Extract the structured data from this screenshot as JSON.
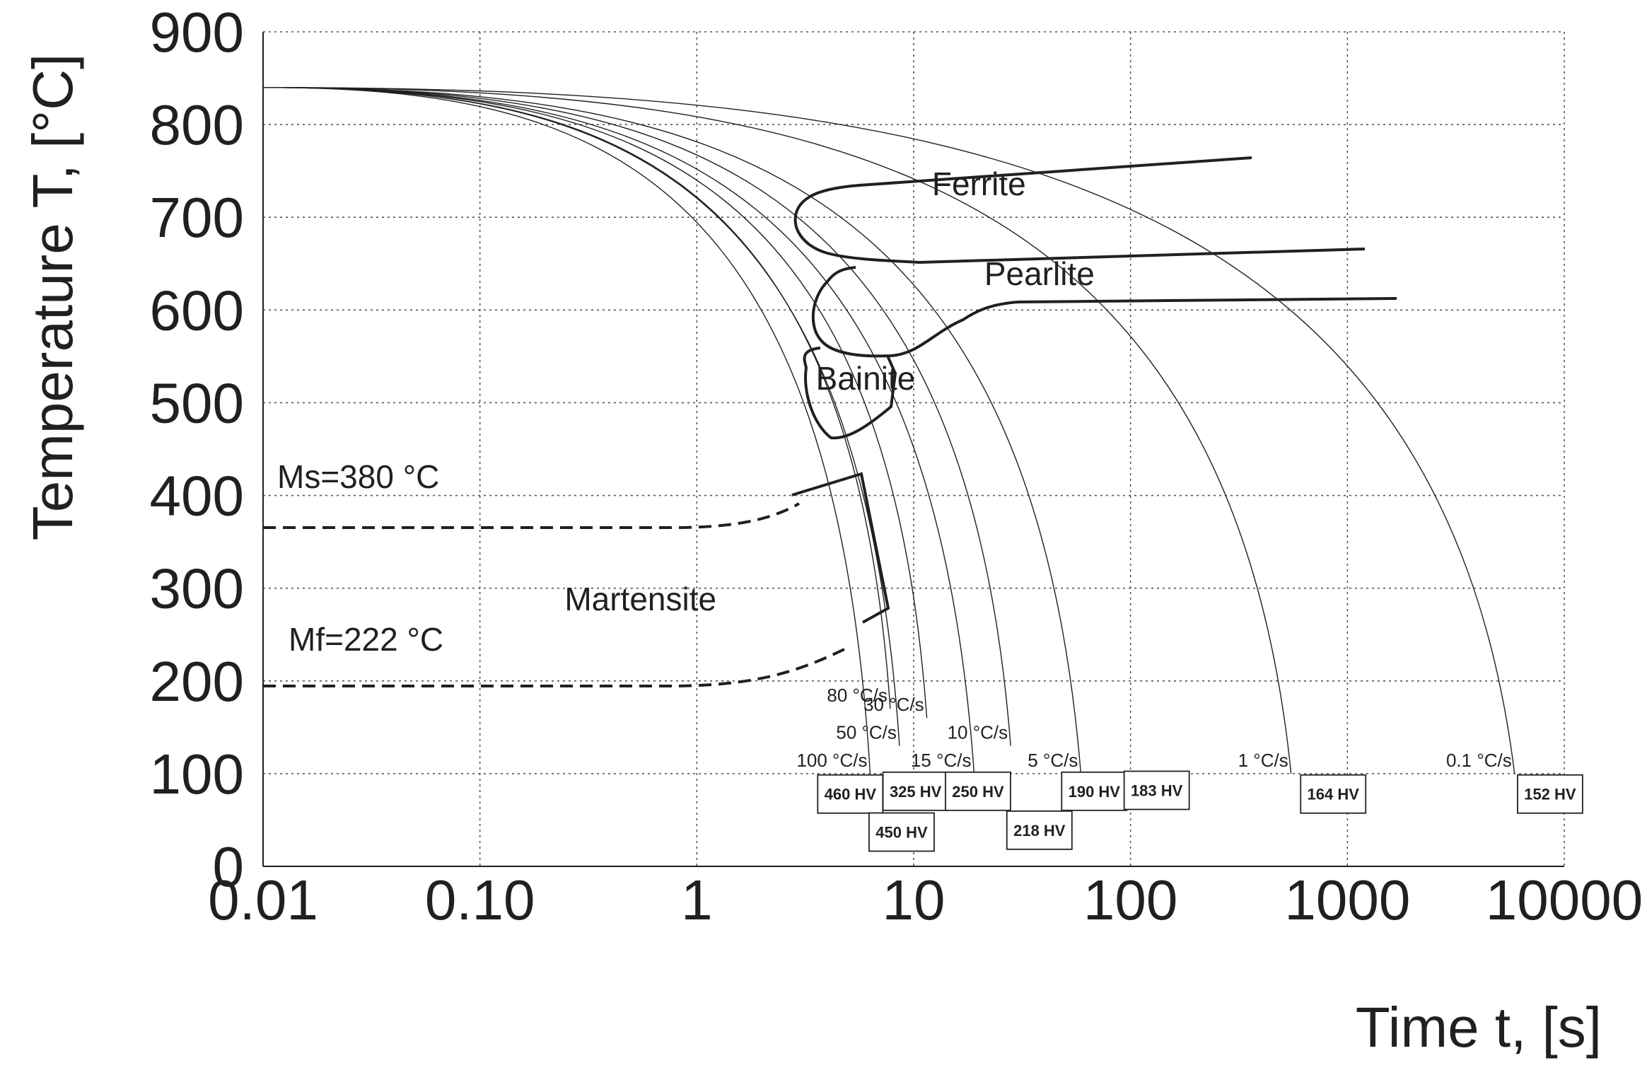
{
  "chart_data": {
    "type": "line",
    "title": "",
    "xlabel": "Time t, [s]",
    "ylabel": "Temperature T, [°C]",
    "xscale": "log",
    "xlim": [
      0.01,
      10000
    ],
    "ylim": [
      0,
      900
    ],
    "grid": true,
    "xticks": [
      {
        "value": 0.01,
        "label": "0.01"
      },
      {
        "value": 0.1,
        "label": "0.10"
      },
      {
        "value": 1,
        "label": "1"
      },
      {
        "value": 10,
        "label": "10"
      },
      {
        "value": 100,
        "label": "100"
      },
      {
        "value": 1000,
        "label": "1000"
      },
      {
        "value": 10000,
        "label": "10000"
      }
    ],
    "yticks": [
      {
        "value": 0,
        "label": "0"
      },
      {
        "value": 100,
        "label": "100"
      },
      {
        "value": 200,
        "label": "200"
      },
      {
        "value": 300,
        "label": "300"
      },
      {
        "value": 400,
        "label": "400"
      },
      {
        "value": 500,
        "label": "500"
      },
      {
        "value": 600,
        "label": "600"
      },
      {
        "value": 700,
        "label": "700"
      },
      {
        "value": 800,
        "label": "800"
      },
      {
        "value": 900,
        "label": "900"
      }
    ],
    "start_temperature": 840,
    "cooling_curves": [
      {
        "name": "100 °C/s",
        "t_end": 6.3,
        "T_end": 100
      },
      {
        "name": "80 °C/s",
        "t_end": 7.8,
        "T_end": 170
      },
      {
        "name": "50 °C/s",
        "t_end": 8.6,
        "T_end": 130
      },
      {
        "name": "30 °C/s",
        "t_end": 11.5,
        "T_end": 160
      },
      {
        "name": "15 °C/s",
        "t_end": 19,
        "T_end": 100
      },
      {
        "name": "10 °C/s",
        "t_end": 28,
        "T_end": 130
      },
      {
        "name": "5 °C/s",
        "t_end": 59,
        "T_end": 100
      },
      {
        "name": "1 °C/s",
        "t_end": 550,
        "T_end": 100
      },
      {
        "name": "0.1 °C/s",
        "t_end": 5900,
        "T_end": 100
      }
    ],
    "regions": [
      {
        "name": "Ferrite",
        "t": 20,
        "T": 724
      },
      {
        "name": "Pearlite",
        "t": 38,
        "T": 627
      },
      {
        "name": "Bainite",
        "t": 6,
        "T": 514
      },
      {
        "name": "Martensite",
        "t": 0.55,
        "T": 276
      }
    ],
    "martensite": [
      {
        "label": "Ms=380 °C",
        "value": 380
      },
      {
        "label": "Mf=222 °C",
        "value": 222
      }
    ],
    "hardness": [
      {
        "label": "460 HV",
        "t": 5.1,
        "T": 78
      },
      {
        "label": "450 HV",
        "t": 8.8,
        "T": 37
      },
      {
        "label": "325 HV",
        "t": 10.2,
        "T": 81
      },
      {
        "label": "250 HV",
        "t": 19.8,
        "T": 81
      },
      {
        "label": "218 HV",
        "t": 38,
        "T": 39
      },
      {
        "label": "190 HV",
        "t": 68,
        "T": 81
      },
      {
        "label": "183 HV",
        "t": 132,
        "T": 82
      },
      {
        "label": "164 HV",
        "t": 860,
        "T": 78
      },
      {
        "label": "152 HV",
        "t": 8600,
        "T": 78
      }
    ]
  }
}
